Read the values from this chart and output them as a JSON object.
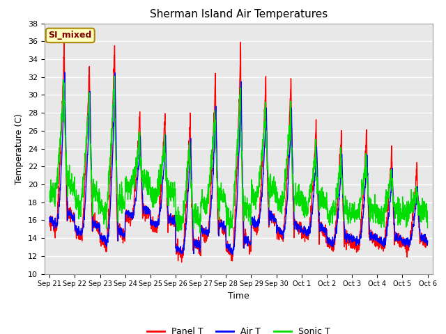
{
  "title": "Sherman Island Air Temperatures",
  "xlabel": "Time",
  "ylabel": "Temperature (C)",
  "ylim": [
    10,
    38
  ],
  "yticks": [
    10,
    12,
    14,
    16,
    18,
    20,
    22,
    24,
    26,
    28,
    30,
    32,
    34,
    36,
    38
  ],
  "xtick_labels": [
    "Sep 21",
    "Sep 22",
    "Sep 23",
    "Sep 24",
    "Sep 25",
    "Sep 26",
    "Sep 27",
    "Sep 28",
    "Sep 29",
    "Sep 30",
    "Oct 1",
    "Oct 2",
    "Oct 3",
    "Oct 4",
    "Oct 5",
    "Oct 6"
  ],
  "bg_color": "#e8e8e8",
  "grid_color": "#ffffff",
  "panel_color": "red",
  "air_color": "blue",
  "sonic_color": "#00dd00",
  "line_width": 1.0,
  "label_box_text": "SI_mixed",
  "label_box_facecolor": "#ffffc0",
  "label_box_edgecolor": "#aa8800",
  "label_box_textcolor": "#800000",
  "legend_labels": [
    "Panel T",
    "Air T",
    "Sonic T"
  ],
  "title_fontsize": 11,
  "axis_fontsize": 9,
  "tick_fontsize": 8,
  "fig_facecolor": "#ffffff"
}
